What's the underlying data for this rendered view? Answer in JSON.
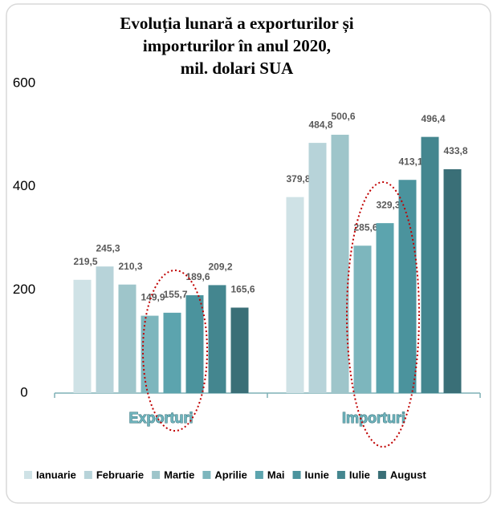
{
  "chart_data": {
    "type": "bar",
    "title": [
      "Evoluția lunară a exporturilor și",
      "importurilor în anul 2020,",
      "mil. dolari SUA"
    ],
    "categories": [
      "Exporturi",
      "Importuri"
    ],
    "series": [
      {
        "name": "Ianuarie",
        "color": "#cfe2e6",
        "values": [
          219.5,
          379.8
        ],
        "value_labels": [
          "219,5",
          "379,8"
        ]
      },
      {
        "name": "Februarie",
        "color": "#b7d3d9",
        "values": [
          245.3,
          484.8
        ],
        "value_labels": [
          "245,3",
          "484,8"
        ]
      },
      {
        "name": "Martie",
        "color": "#9ec5ca",
        "values": [
          210.3,
          500.6
        ],
        "value_labels": [
          "210,3",
          "500,6"
        ]
      },
      {
        "name": "Aprilie",
        "color": "#7db6bd",
        "values": [
          149.9,
          285.6
        ],
        "value_labels": [
          "149,9",
          "285,6"
        ]
      },
      {
        "name": "Mai",
        "color": "#5ca4ae",
        "values": [
          155.7,
          329.3
        ],
        "value_labels": [
          "155,7",
          "329,3"
        ]
      },
      {
        "name": "Iunie",
        "color": "#4b939d",
        "values": [
          189.6,
          413.1
        ],
        "value_labels": [
          "189,6",
          "413,1"
        ]
      },
      {
        "name": "Iulie",
        "color": "#44868f",
        "values": [
          209.2,
          496.4
        ],
        "value_labels": [
          "209,2",
          "496,4"
        ]
      },
      {
        "name": "August",
        "color": "#3a6f77",
        "values": [
          165.6,
          433.8
        ],
        "value_labels": [
          "165,6",
          "433,8"
        ]
      }
    ],
    "ylim": [
      0,
      600
    ],
    "yticks": [
      0,
      200,
      400,
      600
    ],
    "grid": false,
    "legend": "bottom"
  }
}
